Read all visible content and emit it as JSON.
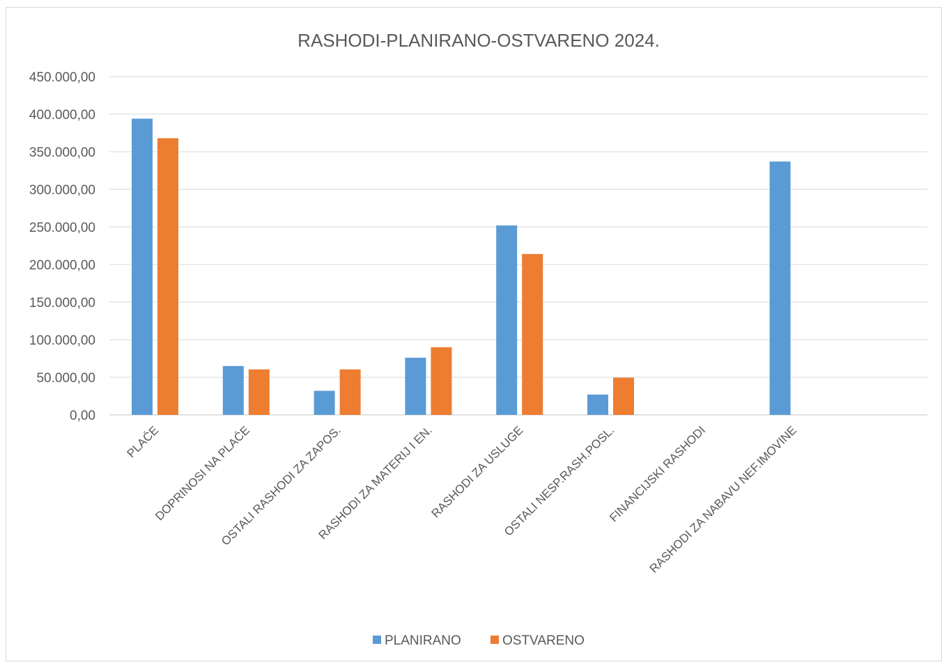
{
  "colors": {
    "planirano": "#5b9bd5",
    "ostvareno": "#ed7d31",
    "grid": "#d9d9d9",
    "text": "#595959"
  },
  "chart_data": {
    "type": "bar",
    "title": "RASHODI-PLANIRANO-OSTVARENO 2024.",
    "categories": [
      "PLAĆE",
      "DOPRINOSI NA PLAĆE",
      "OSTALI RASHODI ZA ZAPOS.",
      "RASHODI ZA MATERIJ I EN.",
      "RASHODI ZA USLUGE",
      "OSTALI NESP.RASH.POSL.",
      "FINANCIJSKI RASHODI",
      "RASHODI ZA NABAVU NEF.IMOVINE"
    ],
    "series": [
      {
        "name": "PLANIRANO",
        "color": "#5b9bd5",
        "values": [
          394000,
          65000,
          32000,
          76000,
          252000,
          27000,
          0,
          337000
        ]
      },
      {
        "name": "OSTVARENO",
        "color": "#ed7d31",
        "values": [
          368000,
          60500,
          60500,
          90000,
          214000,
          49500,
          0,
          0
        ]
      }
    ],
    "ylim": [
      0,
      450000
    ],
    "y_ticks": [
      "0,00",
      "50.000,00",
      "100.000,00",
      "150.000,00",
      "200.000,00",
      "250.000,00",
      "300.000,00",
      "350.000,00",
      "400.000,00",
      "450.000,00"
    ],
    "grid": true,
    "legend_position": "bottom"
  }
}
